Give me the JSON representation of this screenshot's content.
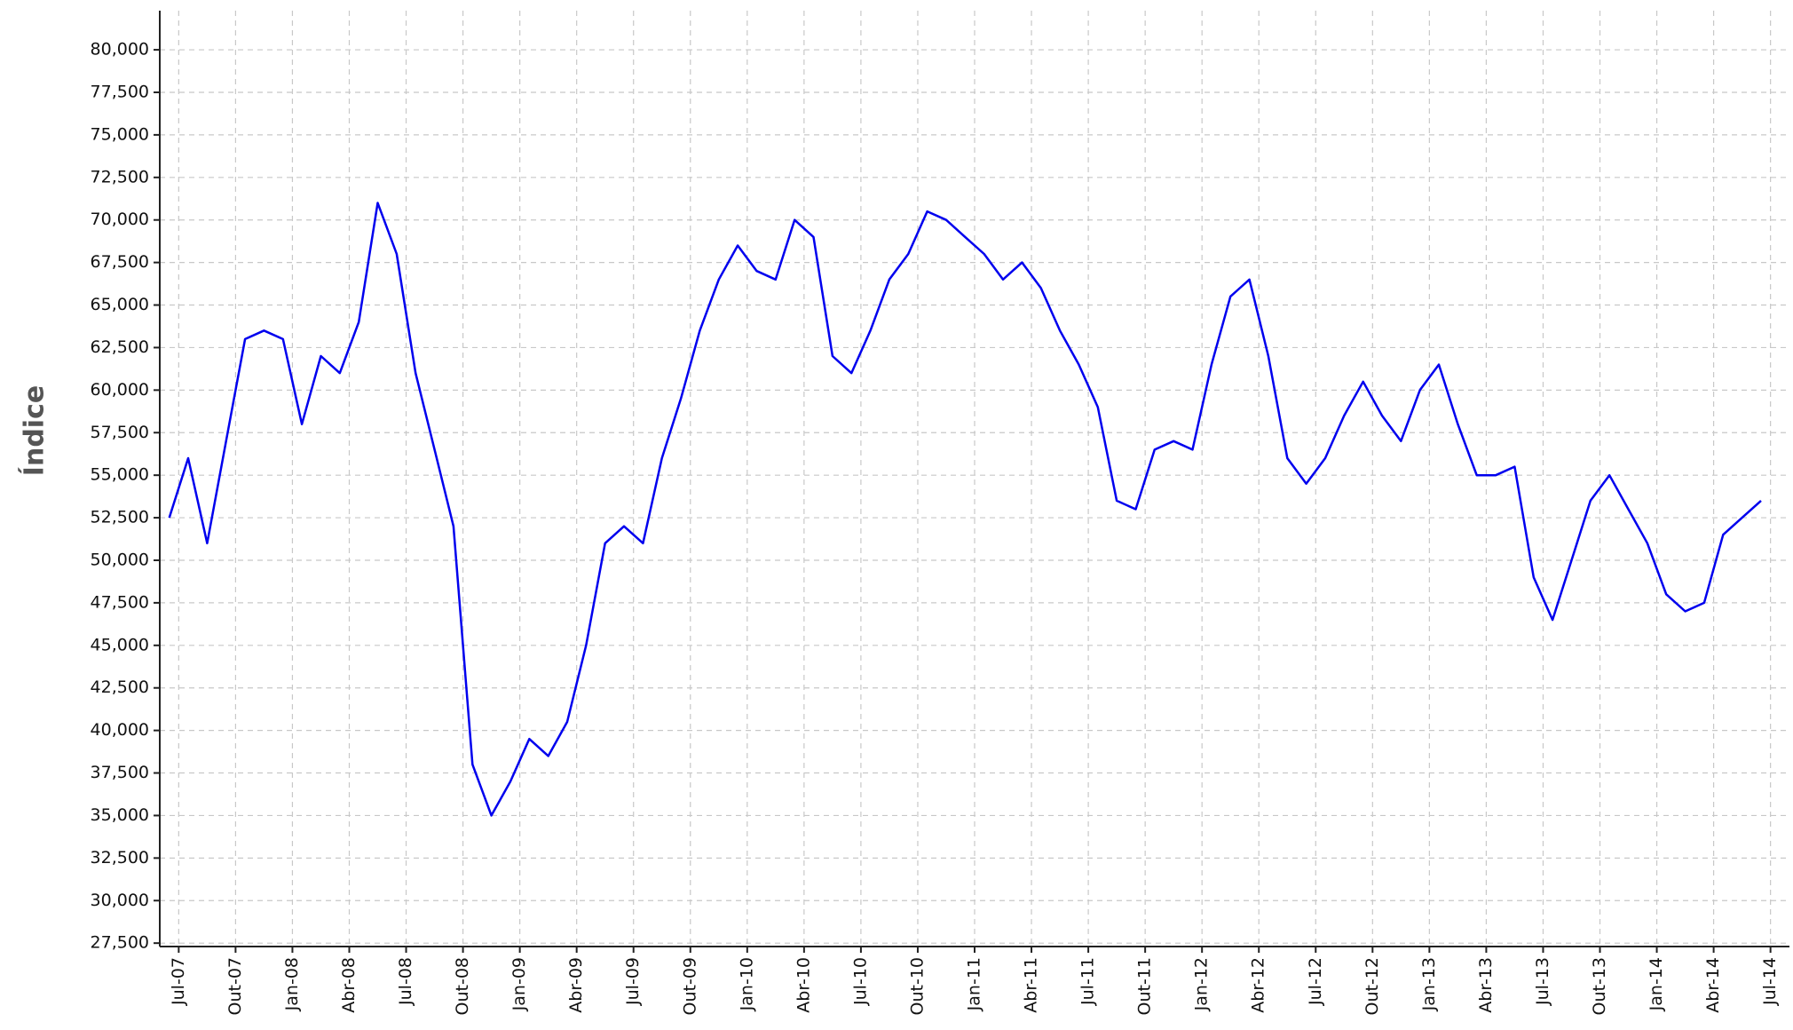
{
  "chart_data": {
    "type": "line",
    "ylabel": "Índice",
    "x": [
      "2007-06",
      "2007-07",
      "2007-08",
      "2007-09",
      "2007-10",
      "2007-11",
      "2007-12",
      "2008-01",
      "2008-02",
      "2008-03",
      "2008-04",
      "2008-05",
      "2008-06",
      "2008-07",
      "2008-08",
      "2008-09",
      "2008-10",
      "2008-11",
      "2008-12",
      "2009-01",
      "2009-02",
      "2009-03",
      "2009-04",
      "2009-05",
      "2009-06",
      "2009-07",
      "2009-08",
      "2009-09",
      "2009-10",
      "2009-11",
      "2009-12",
      "2010-01",
      "2010-02",
      "2010-03",
      "2010-04",
      "2010-05",
      "2010-06",
      "2010-07",
      "2010-08",
      "2010-09",
      "2010-10",
      "2010-11",
      "2010-12",
      "2011-01",
      "2011-02",
      "2011-03",
      "2011-04",
      "2011-05",
      "2011-06",
      "2011-07",
      "2011-08",
      "2011-09",
      "2011-10",
      "2011-11",
      "2011-12",
      "2012-01",
      "2012-02",
      "2012-03",
      "2012-04",
      "2012-05",
      "2012-06",
      "2012-07",
      "2012-08",
      "2012-09",
      "2012-10",
      "2012-11",
      "2012-12",
      "2013-01",
      "2013-02",
      "2013-03",
      "2013-04",
      "2013-05",
      "2013-06",
      "2013-07",
      "2013-08",
      "2013-09",
      "2013-10",
      "2013-11",
      "2013-12",
      "2014-01",
      "2014-02",
      "2014-03",
      "2014-04",
      "2014-05",
      "2014-06"
    ],
    "series": [
      {
        "name": "Índice",
        "color": "#0000ee",
        "values": [
          52500,
          56000,
          51000,
          57000,
          63000,
          63500,
          63000,
          58000,
          62000,
          61000,
          64000,
          71000,
          68000,
          61000,
          56500,
          52000,
          38000,
          35000,
          37000,
          39500,
          38500,
          40500,
          45000,
          51000,
          52000,
          51000,
          56000,
          59500,
          63500,
          66500,
          68500,
          67000,
          66500,
          70000,
          69000,
          62000,
          61000,
          63500,
          66500,
          68000,
          70500,
          70000,
          69000,
          68000,
          66500,
          67500,
          66000,
          63500,
          61500,
          59000,
          53500,
          53000,
          56500,
          57000,
          56500,
          61500,
          65500,
          66500,
          62000,
          56000,
          54500,
          56000,
          58500,
          60500,
          58500,
          57000,
          60000,
          61500,
          58000,
          55000,
          55000,
          55500,
          49000,
          46500,
          50000,
          53500,
          55000,
          53000,
          51000,
          48000,
          47000,
          47500,
          51500,
          52500,
          53500
        ]
      }
    ],
    "xlim": [
      "2007-06",
      "2014-08"
    ],
    "xticks": [
      {
        "value": "2007-07",
        "label": "Jul-07"
      },
      {
        "value": "2007-10",
        "label": "Out-07"
      },
      {
        "value": "2008-01",
        "label": "Jan-08"
      },
      {
        "value": "2008-04",
        "label": "Abr-08"
      },
      {
        "value": "2008-07",
        "label": "Jul-08"
      },
      {
        "value": "2008-10",
        "label": "Out-08"
      },
      {
        "value": "2009-01",
        "label": "Jan-09"
      },
      {
        "value": "2009-04",
        "label": "Abr-09"
      },
      {
        "value": "2009-07",
        "label": "Jul-09"
      },
      {
        "value": "2009-10",
        "label": "Out-09"
      },
      {
        "value": "2010-01",
        "label": "Jan-10"
      },
      {
        "value": "2010-04",
        "label": "Abr-10"
      },
      {
        "value": "2010-07",
        "label": "Jul-10"
      },
      {
        "value": "2010-10",
        "label": "Out-10"
      },
      {
        "value": "2011-01",
        "label": "Jan-11"
      },
      {
        "value": "2011-04",
        "label": "Abr-11"
      },
      {
        "value": "2011-07",
        "label": "Jul-11"
      },
      {
        "value": "2011-10",
        "label": "Out-11"
      },
      {
        "value": "2012-01",
        "label": "Jan-12"
      },
      {
        "value": "2012-04",
        "label": "Abr-12"
      },
      {
        "value": "2012-07",
        "label": "Jul-12"
      },
      {
        "value": "2012-10",
        "label": "Out-12"
      },
      {
        "value": "2013-01",
        "label": "Jan-13"
      },
      {
        "value": "2013-04",
        "label": "Abr-13"
      },
      {
        "value": "2013-07",
        "label": "Jul-13"
      },
      {
        "value": "2013-10",
        "label": "Out-13"
      },
      {
        "value": "2014-01",
        "label": "Jan-14"
      },
      {
        "value": "2014-04",
        "label": "Abr-14"
      },
      {
        "value": "2014-07",
        "label": "Jul-14"
      }
    ],
    "ylim": [
      27300,
      82300
    ],
    "yticks": [
      {
        "value": 27500,
        "label": "27,500"
      },
      {
        "value": 30000,
        "label": "30,000"
      },
      {
        "value": 32500,
        "label": "32,500"
      },
      {
        "value": 35000,
        "label": "35,000"
      },
      {
        "value": 37500,
        "label": "37,500"
      },
      {
        "value": 40000,
        "label": "40,000"
      },
      {
        "value": 42500,
        "label": "42,500"
      },
      {
        "value": 45000,
        "label": "45,000"
      },
      {
        "value": 47500,
        "label": "47,500"
      },
      {
        "value": 50000,
        "label": "50,000"
      },
      {
        "value": 52500,
        "label": "52,500"
      },
      {
        "value": 55000,
        "label": "55,000"
      },
      {
        "value": 57500,
        "label": "57,500"
      },
      {
        "value": 60000,
        "label": "60,000"
      },
      {
        "value": 62500,
        "label": "62,500"
      },
      {
        "value": 65000,
        "label": "65,000"
      },
      {
        "value": 67500,
        "label": "67,500"
      },
      {
        "value": 70000,
        "label": "70,000"
      },
      {
        "value": 72500,
        "label": "72,500"
      },
      {
        "value": 75000,
        "label": "75,000"
      },
      {
        "value": 77500,
        "label": "77,500"
      },
      {
        "value": 80000,
        "label": "80,000"
      }
    ],
    "grid": true
  }
}
